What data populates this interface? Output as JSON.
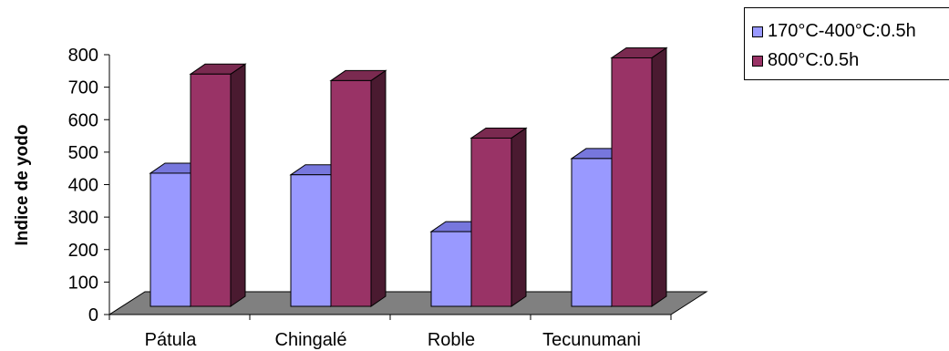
{
  "chart_data": {
    "type": "bar",
    "categories": [
      "Pátula",
      "Chingalé",
      "Roble",
      "Tecunumani"
    ],
    "series": [
      {
        "name": "170°C-400°C:0.5h",
        "values": [
          410,
          405,
          230,
          455
        ]
      },
      {
        "name": "800°C:0.5h",
        "values": [
          715,
          695,
          518,
          765
        ]
      }
    ],
    "ylabel": "Indice de yodo",
    "xlabel": "",
    "ylim": [
      0,
      800
    ],
    "yticks": [
      "0",
      "100",
      "200",
      "300",
      "400",
      "500",
      "600",
      "700",
      "800"
    ],
    "legend_position": "top-right",
    "colors": {
      "series1_front": "#9999ff",
      "series1_top": "#7777dd",
      "series1_side": "#5a5ab8",
      "series2_front": "#993366",
      "series2_top": "#7a2a50",
      "series2_side": "#4a1a30",
      "floor": "#808080"
    }
  }
}
